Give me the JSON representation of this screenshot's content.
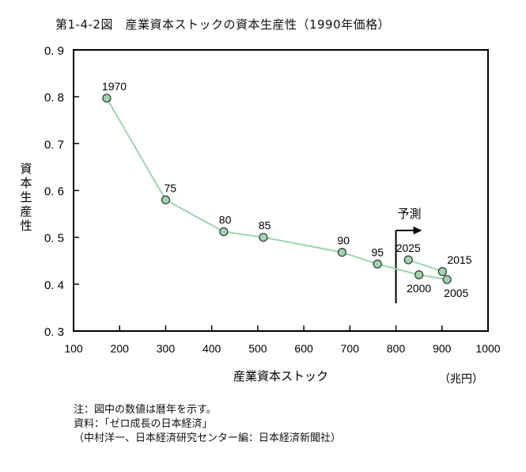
{
  "title": "第1-4-2図　産業資本ストックの資本生産性（1990年価格）",
  "chart_data": {
    "type": "line",
    "title": "第1-4-2図　産業資本ストックの資本生産性（1990年価格）",
    "xlabel": "産業資本ストック",
    "xunit": "（兆円）",
    "ylabel": "資本生産性",
    "xlim": [
      100,
      1000
    ],
    "ylim": [
      0.3,
      0.9
    ],
    "xticks": [
      100,
      200,
      300,
      400,
      500,
      600,
      700,
      800,
      900,
      1000
    ],
    "yticks": [
      "0.9",
      "0.8",
      "0.7",
      "0.6",
      "0.5",
      "0.4",
      "0.3"
    ],
    "grid": false,
    "series": [
      {
        "name": "資本生産性",
        "color": "#9ed4b2",
        "marker_color": "#9ed4b2",
        "points": [
          {
            "label": "1970",
            "x": 172,
            "y": 0.797
          },
          {
            "label": "75",
            "x": 300,
            "y": 0.58
          },
          {
            "label": "80",
            "x": 426,
            "y": 0.512
          },
          {
            "label": "85",
            "x": 512,
            "y": 0.5
          },
          {
            "label": "90",
            "x": 683,
            "y": 0.468
          },
          {
            "label": "95",
            "x": 760,
            "y": 0.443
          },
          {
            "label": "2000",
            "x": 850,
            "y": 0.42
          },
          {
            "label": "2005",
            "x": 911,
            "y": 0.41
          },
          {
            "label": "2015",
            "x": 901,
            "y": 0.427
          },
          {
            "label": "2025",
            "x": 827,
            "y": 0.452
          }
        ]
      }
    ],
    "annotations": [
      {
        "text": "予測",
        "type": "forecast-arrow",
        "x": 800
      }
    ]
  },
  "notes": [
    "注：図中の数値は暦年を示す。",
    "資料：「ゼロ成長の日本経済」",
    "（中村洋一、日本経済研究センター編：日本経済新聞社）"
  ]
}
